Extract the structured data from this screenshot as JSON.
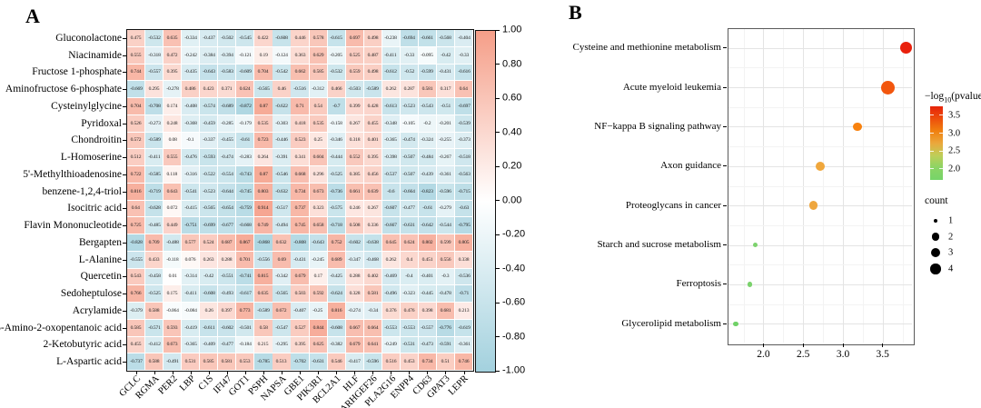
{
  "figure": {
    "panel_a_label": "A",
    "panel_b_label": "B"
  },
  "chart_data": [
    {
      "type": "heatmap",
      "panel": "A",
      "rows": [
        "Gluconolactone",
        "Niacinamide",
        "Fructose 1-phosphate",
        "Aminofructose 6-phosphate",
        "Cysteinylglycine",
        "Pyridoxal",
        "Chondroitin",
        "L-Homoserine",
        "5'-Methylthioadenosine",
        "benzene-1,2,4-triol",
        "Isocitric acid",
        "Flavin Mononucleotide",
        "Bergapten",
        "L-Alanine",
        "Quercetin",
        "Sedoheptulose",
        "Acrylamide",
        "5-Amino-2-oxopentanoic acid",
        "2-Ketobutyric acid",
        "L-Aspartic acid"
      ],
      "columns": [
        "GCLC",
        "RGMA",
        "PER2",
        "LBP",
        "C1S",
        "IFI47",
        "GOT1",
        "PSPH",
        "NAPSA",
        "GBE1",
        "PIK3R1",
        "BCL2A1",
        "HLF",
        "ARHGEF26",
        "PLA2G16",
        "ENPP4",
        "CD63",
        "GPAT3",
        "LEPR"
      ],
      "values": [
        [
          "0.475",
          "-0.532",
          "0.635",
          "-0.334",
          "-0.437",
          "-0.502",
          "-0.545",
          "0.422",
          "-0.608",
          "0.446",
          "0.578",
          "-0.615",
          "0.697",
          "0.498",
          "-0.238",
          "-0.694",
          "-0.661",
          "-0.568",
          "-0.404"
        ],
        [
          "0.555",
          "-0.318",
          "0.472",
          "-0.242",
          "-0.384",
          "-0.394",
          "-0.121",
          "0.19",
          "-0.124",
          "0.363",
          "0.629",
          "-0.205",
          "0.525",
          "0.487",
          "-0.411",
          "-0.33",
          "-0.095",
          "-0.42",
          "-0.33"
        ],
        [
          "0.744",
          "-0.557",
          "0.395",
          "-0.435",
          "-0.643",
          "-0.583",
          "-0.609",
          "0.704",
          "-0.542",
          "0.662",
          "0.585",
          "-0.532",
          "0.559",
          "0.498",
          "-0.612",
          "-0.52",
          "-0.599",
          "-0.431",
          "-0.616"
        ],
        [
          "-0.669",
          "0.295",
          "-0.278",
          "0.486",
          "0.423",
          "0.371",
          "0.624",
          "-0.565",
          "0.46",
          "-0.516",
          "-0.312",
          "0.466",
          "-0.503",
          "-0.589",
          "0.262",
          "0.287",
          "0.581",
          "0.317",
          "0.64"
        ],
        [
          "0.704",
          "-0.708",
          "0.174",
          "-0.408",
          "-0.574",
          "-0.689",
          "-0.872",
          "0.87",
          "-0.622",
          "0.71",
          "0.54",
          "-0.7",
          "0.399",
          "0.428",
          "-0.613",
          "-0.523",
          "-0.543",
          "-0.51",
          "-0.697"
        ],
        [
          "0.526",
          "-0.273",
          "0.248",
          "-0.368",
          "-0.459",
          "-0.285",
          "-0.179",
          "0.535",
          "-0.303",
          "0.418",
          "0.535",
          "-0.158",
          "0.267",
          "0.455",
          "-0.348",
          "-0.105",
          "-0.2",
          "-0.201",
          "-0.539"
        ],
        [
          "0.572",
          "-0.589",
          "0.08",
          "-0.1",
          "-0.337",
          "-0.455",
          "-0.61",
          "0.723",
          "-0.446",
          "0.523",
          "0.25",
          "-0.346",
          "0.318",
          "0.401",
          "-0.365",
          "-0.474",
          "-0.324",
          "-0.255",
          "-0.373"
        ],
        [
          "0.512",
          "-0.411",
          "0.555",
          "-0.476",
          "-0.593",
          "-0.474",
          "-0.283",
          "0.264",
          "-0.391",
          "0.341",
          "0.604",
          "-0.444",
          "0.552",
          "0.395",
          "-0.398",
          "-0.507",
          "-0.484",
          "-0.267",
          "-0.518"
        ],
        [
          "0.722",
          "-0.585",
          "0.118",
          "-0.316",
          "-0.522",
          "-0.554",
          "-0.743",
          "0.87",
          "-0.546",
          "0.668",
          "0.296",
          "-0.525",
          "0.385",
          "0.456",
          "-0.537",
          "-0.507",
          "-0.439",
          "-0.361",
          "-0.563"
        ],
        [
          "0.816",
          "-0.719",
          "0.643",
          "-0.541",
          "-0.523",
          "-0.644",
          "-0.745",
          "0.803",
          "-0.632",
          "0.734",
          "0.673",
          "-0.736",
          "0.661",
          "0.639",
          "-0.6",
          "-0.664",
          "-0.823",
          "-0.596",
          "-0.715"
        ],
        [
          "0.64",
          "-0.628",
          "0.072",
          "-0.415",
          "-0.565",
          "-0.654",
          "-0.759",
          "0.914",
          "-0.517",
          "0.737",
          "0.323",
          "-0.575",
          "0.246",
          "0.267",
          "-0.607",
          "-0.477",
          "-0.61",
          "-0.279",
          "-0.63"
        ],
        [
          "0.725",
          "-0.485",
          "0.449",
          "-0.751",
          "-0.699",
          "-0.677",
          "-0.668",
          "0.749",
          "-0.494",
          "0.745",
          "0.658",
          "-0.718",
          "0.508",
          "0.336",
          "-0.667",
          "-0.631",
          "-0.642",
          "-0.544",
          "-0.795"
        ],
        [
          "-0.828",
          "0.709",
          "-0.488",
          "0.577",
          "0.524",
          "0.687",
          "0.867",
          "-0.868",
          "0.632",
          "-0.808",
          "-0.643",
          "0.752",
          "-0.602",
          "-0.638",
          "0.645",
          "0.624",
          "0.802",
          "0.599",
          "0.805"
        ],
        [
          "-0.555",
          "0.433",
          "-0.118",
          "0.076",
          "0.263",
          "0.288",
          "0.701",
          "-0.556",
          "0.69",
          "-0.431",
          "-0.245",
          "0.689",
          "-0.347",
          "-0.468",
          "0.262",
          "0.4",
          "0.451",
          "0.556",
          "0.338"
        ],
        [
          "0.543",
          "-0.458",
          "0.01",
          "-0.314",
          "-0.42",
          "-0.551",
          "-0.741",
          "0.815",
          "-0.342",
          "0.679",
          "0.17",
          "-0.425",
          "0.288",
          "0.402",
          "-0.469",
          "-0.4",
          "-0.401",
          "-0.3",
          "-0.536"
        ],
        [
          "0.766",
          "-0.525",
          "0.175",
          "-0.411",
          "-0.608",
          "-0.493",
          "-0.617",
          "0.635",
          "-0.565",
          "0.503",
          "0.592",
          "-0.624",
          "0.328",
          "0.581",
          "-0.496",
          "-0.323",
          "-0.445",
          "-0.478",
          "-0.71"
        ],
        [
          "-0.379",
          "0.588",
          "-0.064",
          "-0.084",
          "0.26",
          "0.397",
          "0.773",
          "-0.589",
          "0.672",
          "-0.407",
          "-0.25",
          "0.816",
          "-0.274",
          "-0.34",
          "0.376",
          "0.476",
          "0.398",
          "0.681",
          "0.213"
        ],
        [
          "0.585",
          "-0.571",
          "0.593",
          "-0.419",
          "-0.611",
          "-0.602",
          "-0.501",
          "0.58",
          "-0.547",
          "0.527",
          "0.844",
          "-0.608",
          "0.667",
          "0.664",
          "-0.553",
          "-0.553",
          "-0.557",
          "-0.776",
          "-0.619"
        ],
        [
          "0.455",
          "-0.412",
          "0.673",
          "-0.365",
          "-0.409",
          "-0.477",
          "-0.184",
          "0.215",
          "-0.295",
          "0.395",
          "0.625",
          "-0.382",
          "0.679",
          "0.641",
          "-0.249",
          "-0.531",
          "-0.473",
          "-0.591",
          "-0.361"
        ],
        [
          "-0.737",
          "0.588",
          "-0.491",
          "0.531",
          "0.585",
          "0.581",
          "0.553",
          "-0.785",
          "0.513",
          "-0.702",
          "-0.631",
          "0.546",
          "-0.417",
          "-0.596",
          "0.516",
          "0.453",
          "0.734",
          "0.51",
          "0.746"
        ]
      ],
      "colorbar": {
        "ticks": [
          "1.00",
          "0.80",
          "0.60",
          "0.40",
          "0.20",
          "0.00",
          "-0.20",
          "-0.40",
          "-0.60",
          "-0.80",
          "-1.00"
        ],
        "range": [
          -1,
          1
        ],
        "positive_color": "#F59E88",
        "negative_color": "#A3D1DE",
        "mid_color": "#FFFFFF"
      }
    },
    {
      "type": "scatter",
      "panel": "B",
      "xlabel": "",
      "ylabel": "",
      "x_ticks": [
        2.0,
        2.5,
        3.0,
        3.5
      ],
      "xlim": [
        1.55,
        3.88
      ],
      "grid": true,
      "points": [
        {
          "label": "Cysteine and methionine metabolism",
          "x": 3.79,
          "count": 3,
          "color": "#E9200C",
          "radius": 6.6
        },
        {
          "label": "Acute myeloid leukemia",
          "x": 3.57,
          "count": 4,
          "color": "#F2560E",
          "radius": 7.5
        },
        {
          "label": "NF−kappa B signaling pathway",
          "x": 3.18,
          "count": 2,
          "color": "#F8820F",
          "radius": 4.9
        },
        {
          "label": "Axon guidance",
          "x": 2.72,
          "count": 2,
          "color": "#F0A73C",
          "radius": 5.0
        },
        {
          "label": "Proteoglycans in cancer",
          "x": 2.63,
          "count": 2,
          "color": "#EEA63E",
          "radius": 4.8
        },
        {
          "label": "Starch and sucrose metabolism",
          "x": 1.9,
          "count": 1,
          "color": "#7CD26D",
          "radius": 2.8
        },
        {
          "label": "Ferroptosis",
          "x": 1.83,
          "count": 1,
          "color": "#7AD26C",
          "radius": 2.8
        },
        {
          "label": "Glycerolipid metabolism",
          "x": 1.65,
          "count": 1,
          "color": "#70D167",
          "radius": 2.8
        }
      ],
      "legend": {
        "color_title_prefix": "−log",
        "color_title_sub": "10",
        "color_title_suffix": "(pvalue)",
        "color_ticks": [
          "3.5",
          "3.0",
          "2.5",
          "2.0"
        ],
        "color_tick_values": [
          3.5,
          3.0,
          2.5,
          2.0
        ],
        "legend_range": [
          1.69,
          3.75
        ],
        "gradient": [
          "#E62309",
          "#ED4E0C",
          "#F0800F",
          "#EBA73C",
          "#BFCE58",
          "#8BD465",
          "#76D469"
        ],
        "count_title": "count",
        "count_items": [
          {
            "label": "1",
            "radius": 2.3
          },
          {
            "label": "2",
            "radius": 4.3
          },
          {
            "label": "3",
            "radius": 5.0
          },
          {
            "label": "4",
            "radius": 5.7
          }
        ]
      }
    }
  ]
}
